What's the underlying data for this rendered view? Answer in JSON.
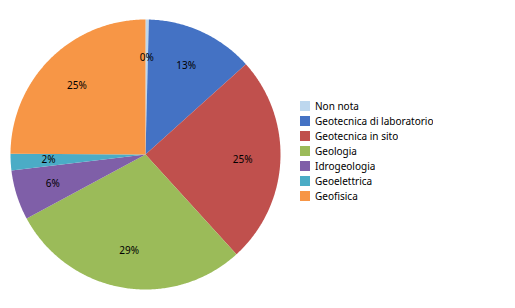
{
  "chart_data": {
    "type": "pie",
    "categories": [
      "Non nota",
      "Geotecnica di laboratorio",
      "Geotecnica in sito",
      "Geologia",
      "Idrogeologia",
      "Geoelettrica",
      "Geofisica"
    ],
    "values": [
      0.4,
      13,
      25,
      29,
      6,
      2,
      25
    ],
    "value_labels": [
      "0%",
      "13%",
      "25%",
      "29%",
      "6%",
      "2%",
      "25%"
    ],
    "colors": [
      "#BDD7EE",
      "#4472C4",
      "#C0504D",
      "#9BBB59",
      "#7F5FA8",
      "#4BACC6",
      "#F79646"
    ],
    "data_labels": true,
    "legend": "right"
  }
}
